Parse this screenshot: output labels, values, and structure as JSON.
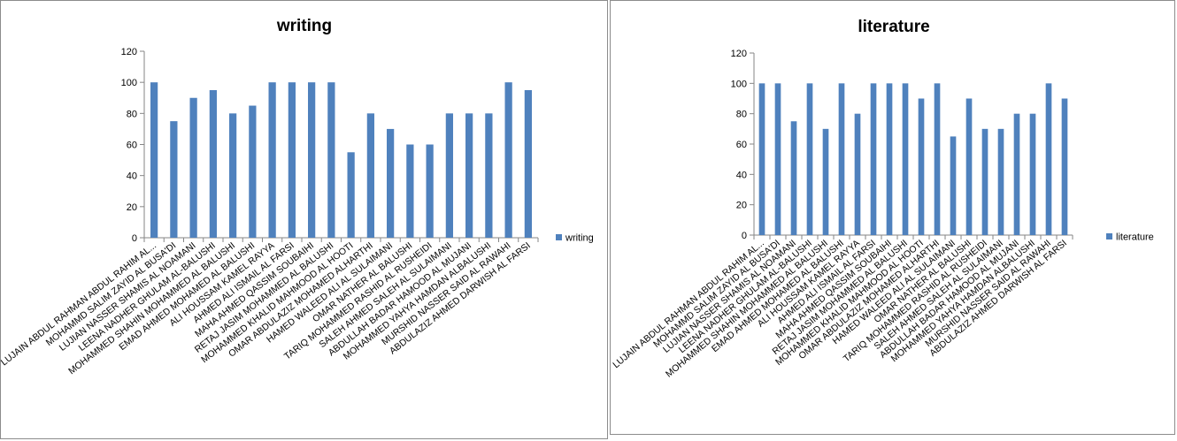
{
  "chart_data": [
    {
      "type": "bar",
      "title": "writing",
      "legend_position": "right",
      "ylim": [
        0,
        120
      ],
      "yticks": [
        0,
        20,
        40,
        60,
        80,
        100,
        120
      ],
      "categories": [
        "LUJAIN ABDUL RAHMAN ABDUL RAHIM AL...",
        "MOHAMMD SALIM ZAYID AL BUSA'DI",
        "LUJIAN NASSER SHAMIS AL NOAMANI",
        "LEENA NADHER GHULAM AL-BALUSHI",
        "MOHAMMED SHAHIN MOHAMMED AL BALUSHI",
        "EMAD AHMED MOHAMED AL BALUSHI",
        "ALI HOUSSAM KAMEL RAYYA",
        "AHMED ALI ISMAIL AL FARSI",
        "MAHA AHMED QASSIM SOUBAIHI",
        "RETAJ JASIM MOHAMMED AL BALUSHI",
        "MOHAMMED KHALID MAHMOOD AL HOOTI",
        "OMAR ABDULAZIZ MOHAMED ALHARTHI",
        "HAMED WALEED ALI AL SULAIMANI",
        "OMAR NATHER AL BALUSHI",
        "TARIQ MOHAMMED RASHID AL RUSHEIDI",
        "SALEH AHMED SALEH AL SULAIMANI",
        "ABDULLAH BADAR HAMOOD AL MUJANI",
        "MOHAMMED YAHYA HAMDAN ALBALUSHI",
        "MURSHID NASSER SAID AL RAWAHI",
        "ABDULAZIZ AHMED DARWISH AL FARSI"
      ],
      "series": [
        {
          "name": "writing",
          "color": "#4f81bd",
          "values": [
            100,
            75,
            90,
            95,
            80,
            85,
            100,
            100,
            100,
            100,
            55,
            80,
            70,
            60,
            60,
            80,
            80,
            80,
            100,
            95
          ]
        }
      ]
    },
    {
      "type": "bar",
      "title": "literature",
      "legend_position": "right",
      "ylim": [
        0,
        120
      ],
      "yticks": [
        0,
        20,
        40,
        60,
        80,
        100,
        120
      ],
      "categories": [
        "LUJAIN ABDUL RAHMAN ABDUL RAHIM AL...",
        "MOHAMMD SALIM ZAYID AL BUSA'DI",
        "LUJIAN NASSER SHAMIS AL NOAMANI",
        "LEENA NADHER GHULAM AL-BALUSHI",
        "MOHAMMED SHAHIN MOHAMMED AL BALUSHI",
        "EMAD AHMED MOHAMED AL BALUSHI",
        "ALI HOUSSAM KAMEL RAYYA",
        "AHMED ALI ISMAIL AL FARSI",
        "MAHA AHMED QASSIM SOUBAIHI",
        "RETAJ JASIM MOHAMMED AL BALUSHI",
        "MOHAMMED KHALID MAHMOOD AL HOOTI",
        "OMAR ABDULAZIZ MOHAMED ALHARTHI",
        "HAMED WALEED ALI AL SULAIMANI",
        "OMAR NATHER AL BALUSHI",
        "TARIQ MOHAMMED RASHID AL RUSHEIDI",
        "SALEH AHMED SALEH AL SULAIMANI",
        "ABDULLAH BADAR HAMOOD AL MUJANI",
        "MOHAMMED YAHYA HAMDAN ALBALUSHI",
        "MURSHID NASSER SAID AL RAWAHI",
        "ABDULAZIZ AHMED DARWISH AL FARSI"
      ],
      "series": [
        {
          "name": "literature",
          "color": "#4f81bd",
          "values": [
            100,
            100,
            75,
            100,
            70,
            100,
            80,
            100,
            100,
            100,
            90,
            100,
            65,
            90,
            70,
            70,
            80,
            80,
            100,
            90
          ]
        }
      ]
    }
  ]
}
